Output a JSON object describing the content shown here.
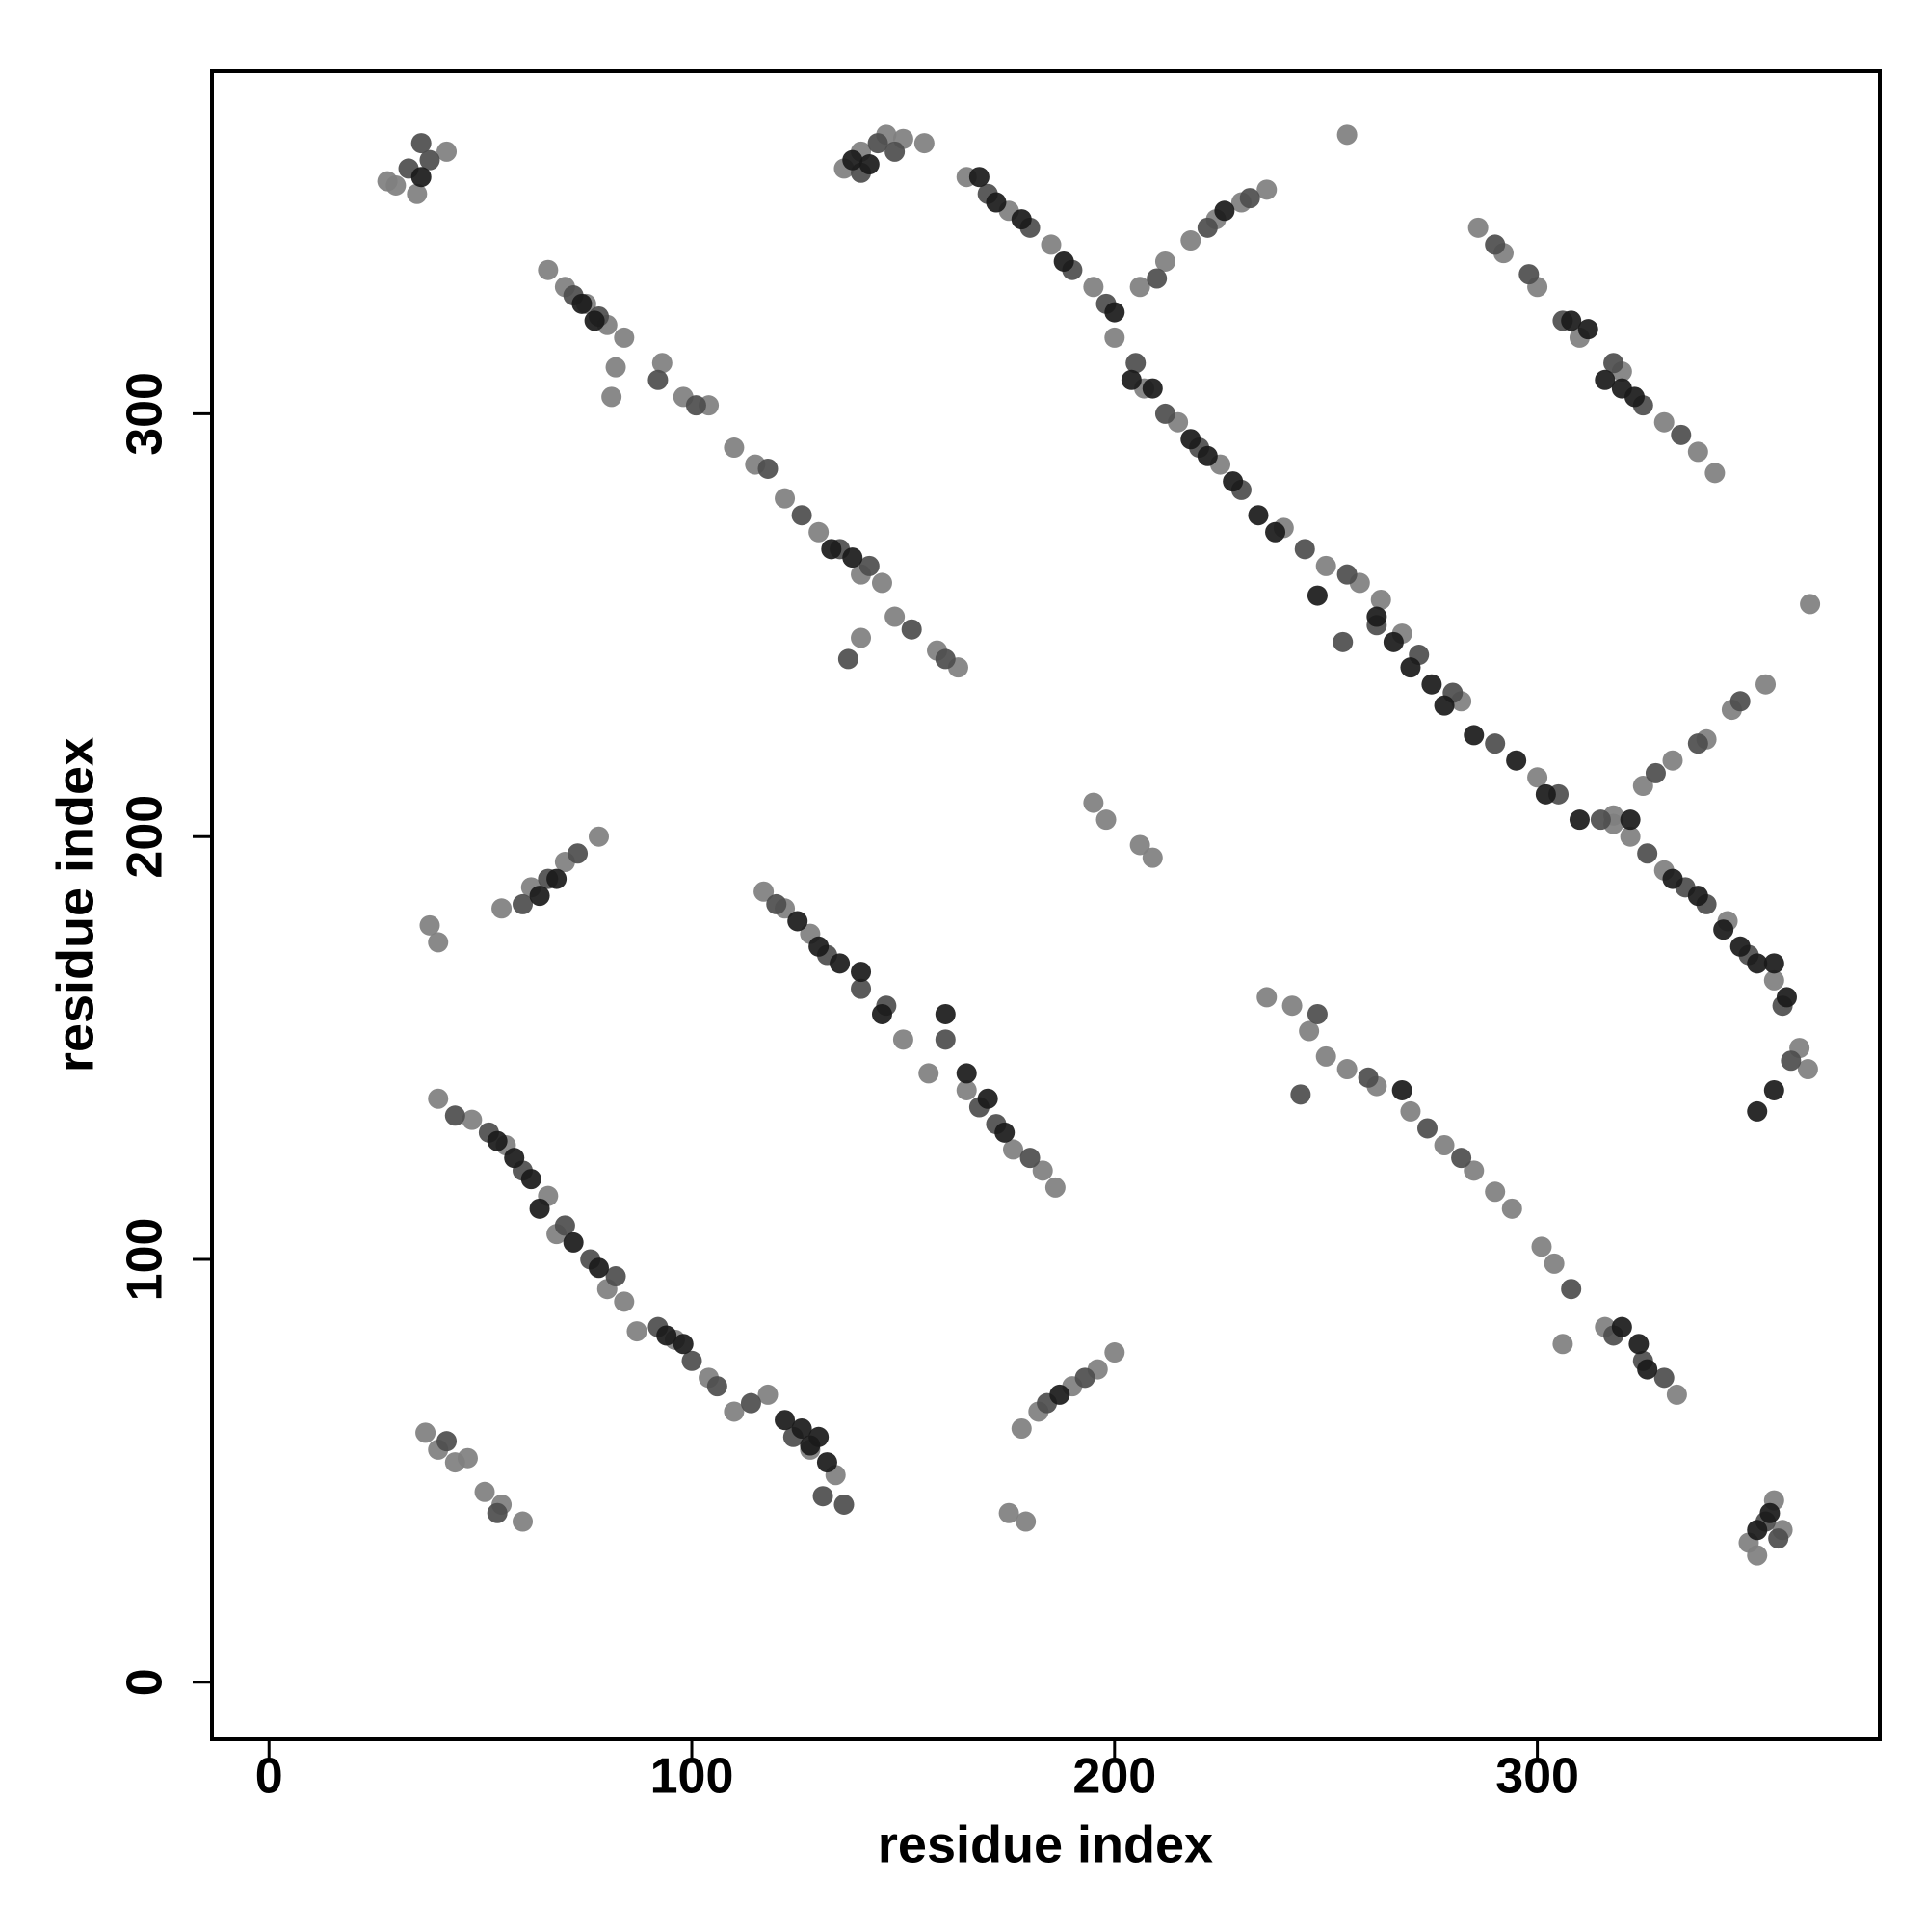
{
  "chart_data": {
    "type": "scatter",
    "x_label": "residue index",
    "y_label": "residue index",
    "xlim": [
      -13.5,
      381
    ],
    "ylim": [
      -13.5,
      381
    ],
    "xticks": [
      0,
      100,
      200,
      300
    ],
    "yticks": [
      0,
      100,
      200,
      300
    ],
    "grid": false,
    "series": [
      {
        "color": "#7f7f7f",
        "x": [
          30,
          35,
          42,
          28,
          66,
          70,
          75,
          80,
          84,
          82,
          93,
          98,
          104,
          81,
          136,
          140,
          146,
          150,
          155,
          165,
          175,
          185,
          195,
          200,
          207,
          215,
          225,
          240,
          250,
          258,
          263,
          268,
          282,
          300,
          318,
          322,
          330,
          345,
          356,
          362,
          364,
          206,
          212,
          218,
          224,
          230,
          236,
          318,
          325,
          332,
          340,
          346,
          354,
          286,
          292,
          300,
          310,
          320,
          330,
          338,
          342,
          110,
          115,
          122,
          130,
          140,
          145,
          140,
          148,
          158,
          163,
          255,
          364.5,
          195,
          198,
          206,
          209,
          55,
          62,
          70,
          78,
          38,
          40,
          117,
          122,
          128,
          150,
          156,
          165,
          176,
          183,
          186,
          40,
          48,
          56,
          66,
          68,
          80,
          84,
          87,
          96,
          104,
          110,
          118,
          128,
          134,
          37,
          40,
          44,
          47,
          51,
          55,
          60,
          178,
          182,
          190,
          196,
          200,
          175,
          179,
          236,
          242,
          246,
          250,
          255,
          262,
          270,
          278,
          285,
          290,
          294,
          301,
          304,
          306,
          316,
          333,
          350,
          352,
          358,
          356
        ],
        "values": [
          354,
          352,
          362,
          355,
          334,
          330,
          326,
          321,
          318,
          311,
          312,
          304,
          302,
          304,
          358,
          362,
          366,
          365,
          364,
          356,
          348,
          340,
          330,
          318,
          306,
          298,
          288,
          273,
          264,
          260,
          256,
          248,
          232,
          214,
          203,
          200,
          192,
          180,
          166,
          150,
          145,
          330,
          336,
          341,
          346,
          350,
          353,
          205,
          212,
          218,
          223,
          230,
          236,
          344,
          338,
          330,
          318,
          310,
          298,
          291,
          286,
          292,
          288,
          280,
          272,
          262,
          260,
          247,
          252,
          244,
          240,
          366,
          255,
          208,
          204,
          198,
          195,
          183,
          188,
          194,
          200,
          179,
          175,
          187,
          183,
          177,
          152,
          144,
          140,
          126,
          121,
          117,
          138,
          133,
          127,
          115,
          106,
          93,
          90,
          83,
          81,
          72,
          64,
          68,
          55,
          49,
          59,
          55,
          52,
          53,
          45,
          42,
          38,
          60,
          64,
          70,
          74,
          78,
          40,
          38,
          162,
          160,
          154,
          148,
          145,
          141,
          135,
          127,
          121,
          116,
          112,
          103,
          99,
          80,
          84,
          68,
          33,
          30,
          36,
          43
        ]
      },
      {
        "color": "#4d4d4d",
        "x": [
          33,
          38,
          36,
          72,
          78,
          92,
          101,
          140,
          144,
          148,
          170,
          180,
          190,
          198,
          205,
          212,
          220,
          230,
          245,
          255,
          262,
          272,
          280,
          290,
          305,
          315,
          326,
          335,
          340,
          350,
          358,
          360,
          210,
          222,
          232,
          328,
          338,
          348,
          290,
          298,
          306,
          318,
          325,
          334,
          118,
          126,
          135,
          142,
          152,
          160,
          137,
          60,
          66,
          73,
          120,
          132,
          140,
          146,
          160,
          168,
          172,
          180,
          44,
          52,
          60,
          70,
          76,
          82,
          92,
          100,
          106,
          114,
          124,
          131,
          136,
          42,
          54,
          184,
          193,
          248,
          260,
          274,
          282,
          308,
          318,
          325,
          330,
          354,
          357,
          244,
          254
        ],
        "values": [
          358,
          360,
          364,
          328,
          323,
          308,
          302,
          357,
          364,
          362,
          352,
          344,
          334,
          326,
          312,
          300,
          292,
          282,
          268,
          262,
          250,
          243,
          234,
          222,
          210,
          204,
          196,
          188,
          184,
          172,
          160,
          147,
          332,
          344,
          351,
          215,
          222,
          232,
          340,
          333,
          322,
          312,
          302,
          295,
          287,
          276,
          268,
          264,
          249,
          242,
          242,
          184,
          190,
          196,
          184,
          172,
          164,
          160,
          152,
          136,
          132,
          124,
          134,
          130,
          121,
          108,
          100,
          96,
          84,
          76,
          70,
          66,
          58,
          44,
          42,
          57,
          40,
          66,
          72,
          158,
          143,
          131,
          124,
          93,
          82,
          76,
          72,
          38,
          34,
          139,
          246
        ]
      },
      {
        "color": "#1a1a1a",
        "x": [
          36,
          74,
          77,
          138,
          142,
          168,
          172,
          178,
          188,
          200,
          204,
          209,
          218,
          222,
          228,
          234,
          238,
          262,
          266,
          270,
          275,
          278,
          285,
          295,
          302,
          310,
          322,
          332,
          338,
          344,
          348,
          352,
          356,
          359,
          356,
          352,
          226,
          308,
          312,
          316,
          320,
          323,
          133,
          138,
          64,
          68,
          125,
          130,
          135,
          140,
          145,
          160,
          165,
          170,
          174,
          54,
          58,
          62,
          64,
          72,
          78,
          94,
          98,
          122,
          126,
          128,
          130,
          132,
          187,
          268,
          320,
          324,
          326,
          355,
          352,
          248
        ],
        "values": [
          356,
          326,
          322,
          360,
          359,
          356,
          350,
          346,
          336,
          324,
          308,
          306,
          294,
          290,
          284,
          276,
          272,
          252,
          246,
          240,
          236,
          231,
          224,
          218,
          210,
          204,
          204,
          190,
          186,
          178,
          174,
          170,
          170,
          162,
          140,
          135,
          348,
          322,
          320,
          308,
          306,
          304,
          268,
          266,
          186,
          190,
          180,
          174,
          170,
          168,
          158,
          158,
          144,
          138,
          130,
          128,
          124,
          119,
          112,
          104,
          98,
          82,
          80,
          62,
          60,
          56,
          58,
          52,
          68,
          140,
          84,
          80,
          74,
          40,
          36,
          257
        ]
      }
    ]
  }
}
